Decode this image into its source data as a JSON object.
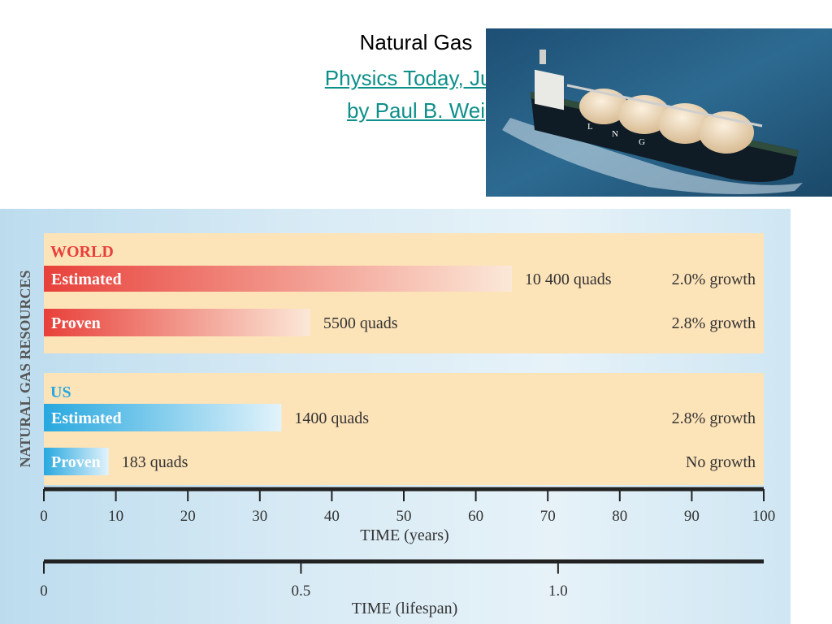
{
  "title": {
    "line1": "Natural Gas",
    "line2": "Physics Today, July",
    "line3": "by Paul B. Wei"
  },
  "photo": {
    "description_icon": "lng-tanker-ship-photo",
    "hull_letters": [
      "L",
      "N",
      "G"
    ]
  },
  "chart_data": {
    "type": "bar",
    "ylabel": "NATURAL GAS RESOURCES",
    "xlabel": "TIME (years)",
    "xlabel2": "TIME (lifespan)",
    "xlim": [
      0,
      100
    ],
    "xticks": [
      "0",
      "10",
      "20",
      "30",
      "40",
      "50",
      "60",
      "70",
      "80",
      "90",
      "100"
    ],
    "xlim2": [
      0,
      1.4
    ],
    "xticks2": [
      {
        "label": "0",
        "value": 0
      },
      {
        "label": "0.5",
        "value": 0.5
      },
      {
        "label": "1.0",
        "value": 1.0
      }
    ],
    "groups": [
      {
        "name": "WORLD",
        "color": "#e8403a",
        "fade": "#fbe8d8",
        "bars": [
          {
            "label": "Estimated",
            "years": 65,
            "amount": "10 400 quads",
            "growth": "2.0% growth"
          },
          {
            "label": "Proven",
            "years": 37,
            "amount": "5500 quads",
            "growth": "2.8% growth"
          }
        ]
      },
      {
        "name": "US",
        "color": "#27a8df",
        "fade": "#e2f3fb",
        "bars": [
          {
            "label": "Estimated",
            "years": 33,
            "amount": "1400 quads",
            "growth": "2.8% growth"
          },
          {
            "label": "Proven",
            "years": 9,
            "amount": "183 quads",
            "growth": "No growth"
          }
        ]
      }
    ],
    "colors": {
      "panel_fill": "#fde3b8",
      "world_label": "#e8403a",
      "us_label": "#27a8df",
      "axis": "#222222"
    }
  }
}
